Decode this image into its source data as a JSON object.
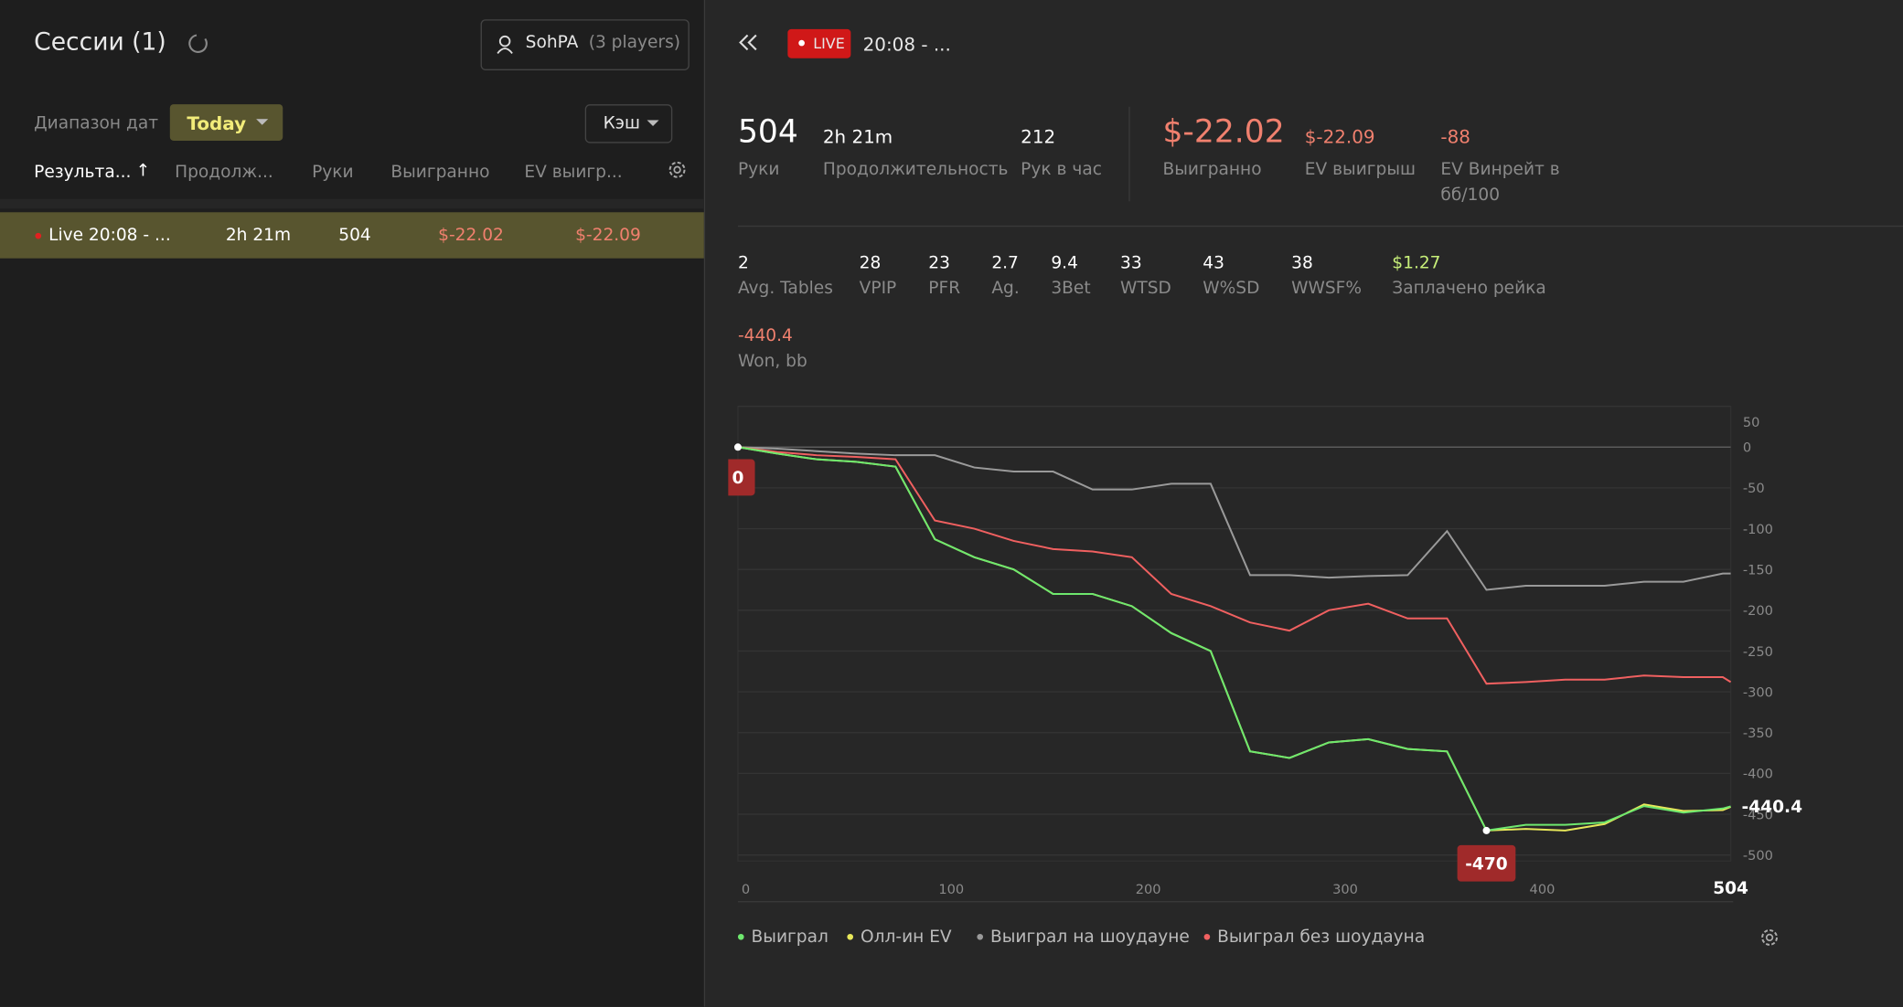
{
  "left_panel": {
    "title": "Сессии (1)",
    "player": "SohPA",
    "player_count": "(3 players)",
    "date_range_label": "Диапазон дат",
    "date_range_value": "Today",
    "game_type": "Кэш",
    "columns": [
      "Результа...",
      "Продолж...",
      "Руки",
      "Выигранно",
      "EV выигр..."
    ],
    "rows": [
      [
        "Live 20:08 - ...",
        "2h 21m",
        "504",
        "$-22.02",
        "$-22.09"
      ]
    ]
  },
  "session": {
    "badge": "LIVE",
    "title": "20:08 - ...",
    "stats_top": [
      {
        "value": "504",
        "label": "Руки"
      },
      {
        "value": "2h 21m",
        "label": "Продолжительность"
      },
      {
        "value": "212",
        "label": "Рук в час"
      },
      {
        "value": "$-22.02",
        "label": "Выигранно"
      },
      {
        "value": "$-22.09",
        "label": "EV выигрыш"
      },
      {
        "value": "-88",
        "label": "EV Винрейт в бб/100"
      }
    ],
    "stats_bottom": [
      {
        "value": "2",
        "label": "Avg. Tables"
      },
      {
        "value": "28",
        "label": "VPIP"
      },
      {
        "value": "23",
        "label": "PFR"
      },
      {
        "value": "2.7",
        "label": "Ag."
      },
      {
        "value": "9.4",
        "label": "3Bet"
      },
      {
        "value": "33",
        "label": "WTSD"
      },
      {
        "value": "43",
        "label": "W%SD"
      },
      {
        "value": "38",
        "label": "WWSF%"
      },
      {
        "value": "$1.27",
        "label": "Заплачено рейка"
      },
      {
        "value": "-440.4",
        "label": "Won, bb"
      }
    ]
  },
  "chart_data": {
    "type": "line",
    "xlim": [
      0,
      504
    ],
    "ylim": [
      -500,
      50
    ],
    "xticks": [
      0,
      100,
      200,
      300,
      400,
      504
    ],
    "yticks": [
      50,
      0,
      -50,
      -100,
      -150,
      -200,
      -250,
      -300,
      -350,
      -400,
      -450,
      -500
    ],
    "grid": true,
    "x": [
      0,
      20,
      40,
      60,
      80,
      100,
      120,
      140,
      160,
      180,
      200,
      220,
      240,
      260,
      280,
      300,
      320,
      340,
      360,
      380,
      400,
      420,
      440,
      460,
      480,
      500,
      504
    ],
    "series": [
      {
        "name": "Выиграл",
        "color": "#6ee86e",
        "values": [
          0,
          -8,
          -15,
          -18,
          -24,
          -113,
          -135,
          -150,
          -180,
          -180,
          -195,
          -228,
          -250,
          -373,
          -381,
          -362,
          -358,
          -370,
          -373,
          -470,
          -463,
          -463,
          -460,
          -440,
          -448,
          -443,
          -440.4
        ]
      },
      {
        "name": "Олл-ин EV",
        "color": "#e8e85a",
        "values": [
          0,
          -8,
          -15,
          -18,
          -24,
          -113,
          -135,
          -150,
          -180,
          -180,
          -195,
          -228,
          -250,
          -373,
          -381,
          -362,
          -358,
          -370,
          -373,
          -470,
          -468,
          -470,
          -462,
          -438,
          -446,
          -445,
          -441
        ]
      },
      {
        "name": "Выиграл на шоудауне",
        "color": "#9a9a9a",
        "values": [
          0,
          -2,
          -5,
          -8,
          -10,
          -10,
          -25,
          -30,
          -30,
          -52,
          -52,
          -45,
          -45,
          -157,
          -157,
          -160,
          -158,
          -157,
          -103,
          -175,
          -170,
          -170,
          -170,
          -165,
          -165,
          -155,
          -155
        ]
      },
      {
        "name": "Выиграл без шоудауна",
        "color": "#f06060",
        "values": [
          0,
          -6,
          -10,
          -12,
          -15,
          -90,
          -100,
          -115,
          -125,
          -128,
          -135,
          -180,
          -195,
          -215,
          -225,
          -200,
          -192,
          -210,
          -210,
          -290,
          -288,
          -285,
          -285,
          -280,
          -282,
          -282,
          -288
        ]
      }
    ]
  }
}
